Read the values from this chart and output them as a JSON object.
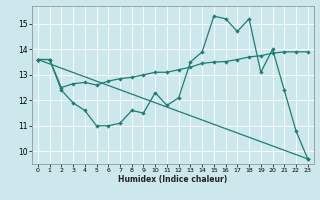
{
  "xlabel": "Humidex (Indice chaleur)",
  "bg_color": "#cce8ec",
  "line_color": "#1e7d72",
  "grid_color": "#ffffff",
  "grid_minor_color": "#e0f0f2",
  "xlim": [
    -0.5,
    23.5
  ],
  "ylim": [
    9.5,
    15.7
  ],
  "yticks": [
    10,
    11,
    12,
    13,
    14,
    15
  ],
  "xticks": [
    0,
    1,
    2,
    3,
    4,
    5,
    6,
    7,
    8,
    9,
    10,
    11,
    12,
    13,
    14,
    15,
    16,
    17,
    18,
    19,
    20,
    21,
    22,
    23
  ],
  "series1_x": [
    0,
    1,
    2,
    3,
    4,
    5,
    6,
    7,
    8,
    9,
    10,
    11,
    12,
    13,
    14,
    15,
    16,
    17,
    18,
    19,
    20,
    21,
    22,
    23
  ],
  "series1_y": [
    13.6,
    13.6,
    12.4,
    11.9,
    11.6,
    11.0,
    11.0,
    11.1,
    11.6,
    11.5,
    12.3,
    11.8,
    12.1,
    13.5,
    13.9,
    15.3,
    15.2,
    14.7,
    15.2,
    13.1,
    14.0,
    12.4,
    10.8,
    9.7
  ],
  "series2_x": [
    0,
    1,
    2,
    3,
    4,
    5,
    6,
    7,
    8,
    9,
    10,
    11,
    12,
    13,
    14,
    15,
    16,
    17,
    18,
    19,
    20,
    21,
    22,
    23
  ],
  "series2_y": [
    13.6,
    13.6,
    12.5,
    12.65,
    12.7,
    12.6,
    12.75,
    12.85,
    12.9,
    13.0,
    13.1,
    13.1,
    13.2,
    13.3,
    13.45,
    13.5,
    13.52,
    13.6,
    13.7,
    13.75,
    13.85,
    13.9,
    13.9,
    13.9
  ],
  "series3_x": [
    0,
    23
  ],
  "series3_y": [
    13.6,
    9.7
  ]
}
